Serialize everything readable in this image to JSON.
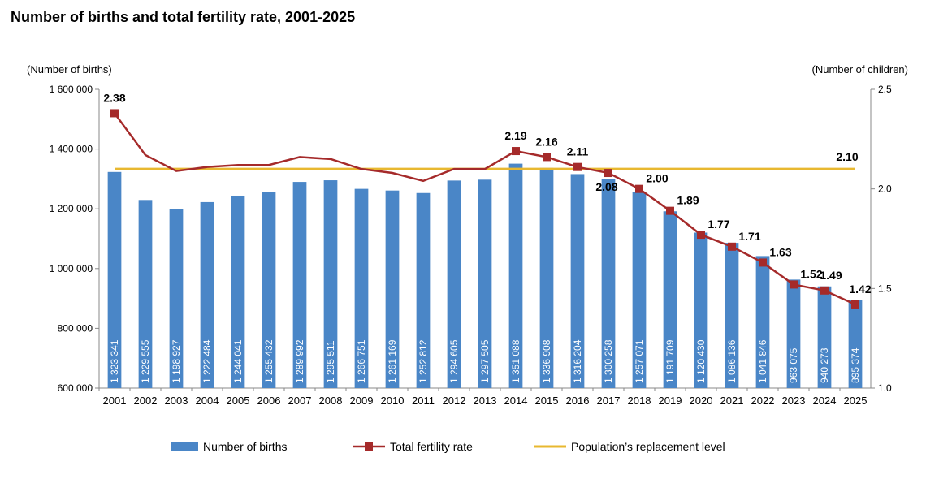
{
  "chart_data": {
    "type": "bar+line",
    "title": "Number of births and total fertility rate, 2001-2025",
    "y_left_label": "(Number of births)",
    "y_right_label": "(Number of children)",
    "y_left_ticks": [
      "1 600 000",
      "1 400 000",
      "1 200 000",
      "1 000 000",
      "800 000",
      "600 000"
    ],
    "y_right_ticks": [
      "2.5",
      "2.0",
      "1.5",
      "1.0"
    ],
    "y_left_lim": [
      600000,
      1600000
    ],
    "y_right_lim": [
      1.0,
      2.5
    ],
    "categories": [
      "2001",
      "2002",
      "2003",
      "2004",
      "2005",
      "2006",
      "2007",
      "2008",
      "2009",
      "2010",
      "2011",
      "2012",
      "2013",
      "2014",
      "2015",
      "2016",
      "2017",
      "2018",
      "2019",
      "2020",
      "2021",
      "2022",
      "2023",
      "2024",
      "2025"
    ],
    "series": [
      {
        "name": "Number of births",
        "color": "#4a86c7",
        "values": [
          1323341,
          1229555,
          1198927,
          1222484,
          1244041,
          1255432,
          1289992,
          1295511,
          1266751,
          1261169,
          1252812,
          1294605,
          1297505,
          1351088,
          1336908,
          1316204,
          1300258,
          1257071,
          1191709,
          1120430,
          1086136,
          1041846,
          963075,
          940273,
          895374
        ],
        "labels": [
          "1 323 341",
          "1 229 555",
          "1 198 927",
          "1 222 484",
          "1 244 041",
          "1 255 432",
          "1 289 992",
          "1 295 511",
          "1 266 751",
          "1 261 169",
          "1 252 812",
          "1 294 605",
          "1 297 505",
          "1 351 088",
          "1 336 908",
          "1 316 204",
          "1 300 258",
          "1 257 071",
          "1 191 709",
          "1 120 430",
          "1 086 136",
          "1 041 846",
          "963 075",
          "940 273",
          "895 374"
        ]
      },
      {
        "name": "Total fertility rate",
        "color": "#a52a2a",
        "values": [
          2.38,
          2.17,
          2.09,
          2.11,
          2.12,
          2.12,
          2.16,
          2.15,
          2.1,
          2.08,
          2.04,
          2.1,
          2.1,
          2.19,
          2.16,
          2.11,
          2.08,
          2.0,
          1.89,
          1.77,
          1.71,
          1.63,
          1.52,
          1.49,
          1.42
        ],
        "marker_years": [
          "2001",
          "2014",
          "2015",
          "2016",
          "2017",
          "2018",
          "2019",
          "2020",
          "2021",
          "2022",
          "2023",
          "2024",
          "2025"
        ],
        "marker_labels": [
          "2.38",
          "2.19",
          "2.16",
          "2.11",
          "2.08",
          "2.00",
          "1.89",
          "1.77",
          "1.71",
          "1.63",
          "1.52",
          "1.49",
          "1.42"
        ]
      },
      {
        "name": "Population’s replacement level",
        "color": "#e8b830",
        "value": 2.1,
        "label": "2.10"
      }
    ],
    "legend_position": "bottom",
    "grid": false
  }
}
